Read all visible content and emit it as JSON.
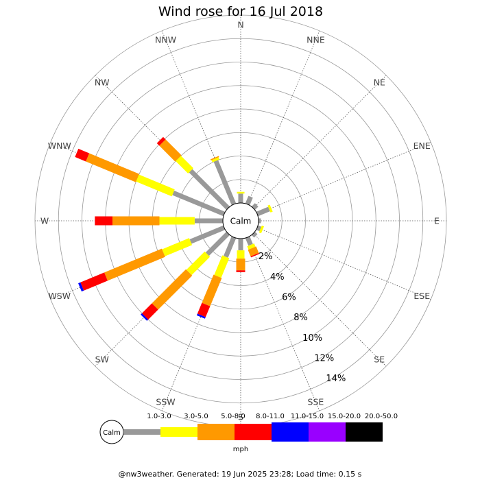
{
  "chart_data": {
    "type": "wind-rose",
    "title": "Wind rose for 16 Jul 2018",
    "center_label": "Calm",
    "directions": [
      "N",
      "NNE",
      "NE",
      "ENE",
      "E",
      "ESE",
      "SE",
      "SSE",
      "S",
      "SSW",
      "SW",
      "WSW",
      "W",
      "WNW",
      "NW",
      "NNW"
    ],
    "ring_labels": [
      "2%",
      "4%",
      "6%",
      "8%",
      "10%",
      "12%",
      "14%"
    ],
    "rmax_percent": 16,
    "speed_bins": [
      {
        "label": "1.0-3.0",
        "color": "#999999"
      },
      {
        "label": "3.0-5.0",
        "color": "#ffff00"
      },
      {
        "label": "5.0-8.0",
        "color": "#ff9900"
      },
      {
        "label": "8.0-11.0",
        "color": "#ff0000"
      },
      {
        "label": "11.0-15.0",
        "color": "#0000ff"
      },
      {
        "label": "15.0-20.0",
        "color": "#9900ff"
      },
      {
        "label": "20.0-50.0",
        "color": "#000000"
      }
    ],
    "units": "mph",
    "series": [
      {
        "direction": "N",
        "values": [
          0.8,
          0.15,
          0,
          0,
          0,
          0,
          0
        ]
      },
      {
        "direction": "NNE",
        "values": [
          0.7,
          0,
          0,
          0,
          0,
          0,
          0
        ]
      },
      {
        "direction": "NE",
        "values": [
          0.4,
          0,
          0,
          0,
          0,
          0,
          0
        ]
      },
      {
        "direction": "ENE",
        "values": [
          1.1,
          0.2,
          0,
          0,
          0,
          0,
          0
        ]
      },
      {
        "direction": "E",
        "values": [
          0.2,
          0,
          0,
          0,
          0,
          0,
          0
        ]
      },
      {
        "direction": "ESE",
        "values": [
          0.3,
          0.2,
          0,
          0,
          0,
          0,
          0
        ]
      },
      {
        "direction": "SE",
        "values": [
          0.3,
          0,
          0,
          0,
          0,
          0,
          0
        ]
      },
      {
        "direction": "SSE",
        "values": [
          0.7,
          0.3,
          0.6,
          0.1,
          0,
          0,
          0
        ]
      },
      {
        "direction": "S",
        "values": [
          1.0,
          0.7,
          1.0,
          0.15,
          0,
          0,
          0
        ]
      },
      {
        "direction": "SSW",
        "values": [
          1.8,
          1.8,
          2.6,
          1.0,
          0.15,
          0,
          0
        ]
      },
      {
        "direction": "SW",
        "values": [
          2.5,
          2.2,
          4.1,
          1.2,
          0.15,
          0,
          0
        ]
      },
      {
        "direction": "WSW",
        "values": [
          3.1,
          2.5,
          5.3,
          2.2,
          0.2,
          0,
          0
        ]
      },
      {
        "direction": "W",
        "values": [
          2.4,
          3.0,
          4.0,
          1.5,
          0,
          0,
          0
        ]
      },
      {
        "direction": "WNW",
        "values": [
          4.7,
          3.3,
          4.6,
          1.0,
          0,
          0,
          0
        ]
      },
      {
        "direction": "NW",
        "values": [
          4.5,
          1.5,
          1.9,
          0.3,
          0,
          0,
          0
        ]
      },
      {
        "direction": "NNW",
        "values": [
          4.0,
          0.2,
          0.1,
          0,
          0,
          0,
          0
        ]
      }
    ]
  },
  "footer": "@nw3weather. Generated: 19 Jun 2025 23:28; Load time: 0.15 s"
}
